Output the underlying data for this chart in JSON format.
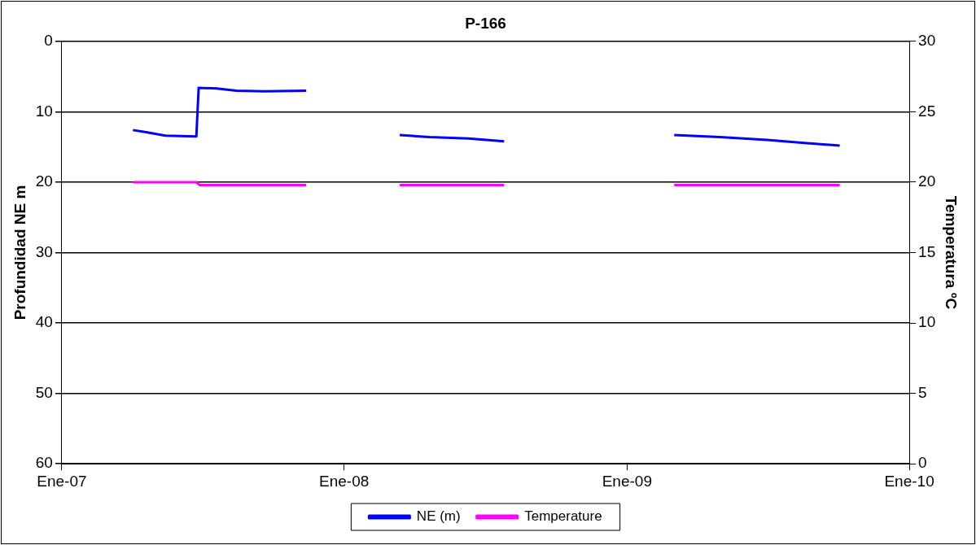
{
  "chart_data": {
    "type": "line",
    "title": "P-166",
    "ylabel": "Profundidad NE m",
    "y2label": "Temperatura ºC",
    "xlim": [
      "2007-01-01",
      "2010-01-01"
    ],
    "xticks": [
      {
        "value": "2007-01-01",
        "label": "Ene-07"
      },
      {
        "value": "2008-01-01",
        "label": "Ene-08"
      },
      {
        "value": "2009-01-01",
        "label": "Ene-09"
      },
      {
        "value": "2010-01-01",
        "label": "Ene-10"
      }
    ],
    "ylim": [
      60,
      0
    ],
    "yticks": [
      0,
      10,
      20,
      30,
      40,
      50,
      60
    ],
    "y2lim": [
      0,
      30
    ],
    "y2ticks": [
      0,
      5,
      10,
      15,
      20,
      25,
      30
    ],
    "grid": "y",
    "legend": "bottom",
    "marker": "none",
    "line_style": "solid",
    "series": [
      {
        "name": "NE (m)",
        "color": "#0000ff",
        "x": [
          "2007-04-03",
          "2007-04-20",
          "2007-05-15",
          "2007-06-24",
          "2007-06-27",
          "2007-07-20",
          "2007-08-15",
          "2007-09-20",
          "2007-11-13",
          "2008-01-15",
          "2008-03-13",
          "2008-04-20",
          "2008-06-10",
          "2008-07-26",
          "2008-11-01",
          "2009-03-03",
          "2009-05-01",
          "2009-07-01",
          "2009-08-15",
          "2009-10-03"
        ],
        "values": [
          12.6,
          12.9,
          13.4,
          13.5,
          6.6,
          6.7,
          7.0,
          7.1,
          7.0,
          null,
          13.3,
          13.6,
          13.8,
          14.2,
          null,
          13.3,
          13.6,
          14.0,
          14.4,
          14.8
        ]
      },
      {
        "name": "Temperature",
        "color": "#ff00ff",
        "axis": "y2",
        "x": [
          "2007-04-03",
          "2007-06-24",
          "2007-06-28",
          "2007-11-13",
          "2008-01-15",
          "2008-03-13",
          "2008-07-26",
          "2008-11-01",
          "2009-03-03",
          "2009-10-03"
        ],
        "values": [
          20.0,
          20.0,
          19.8,
          19.8,
          null,
          19.8,
          19.8,
          null,
          19.8,
          19.8
        ]
      }
    ]
  }
}
